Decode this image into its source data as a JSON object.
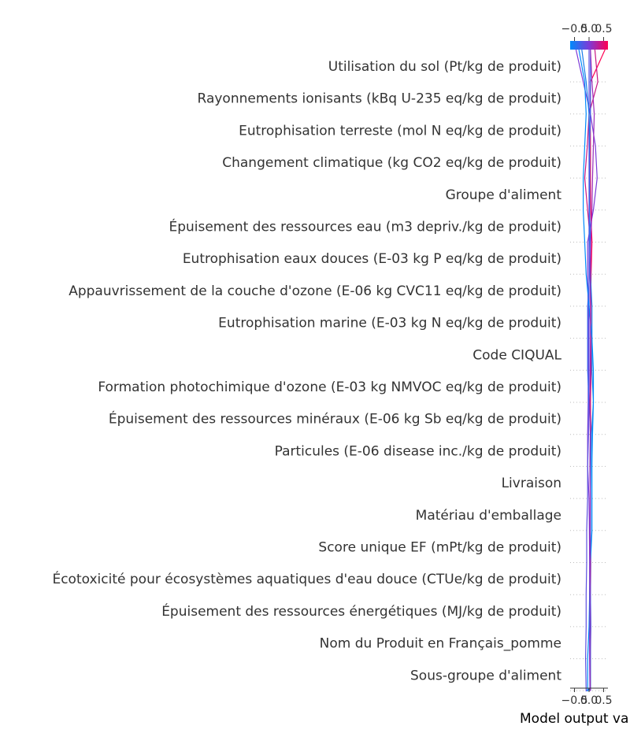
{
  "chart_data": {
    "type": "decision",
    "xlabel": "Model output va",
    "xticks": [
      -0.5,
      0.0,
      0.5
    ],
    "xtick_labels": [
      "−0.5",
      "0.0",
      "0.5"
    ],
    "xlim": [
      -0.65,
      0.65
    ],
    "colorbar": {
      "range": [
        -0.5,
        0.5
      ],
      "tick_labels": [
        "−0.5",
        "0.0",
        "0.5"
      ],
      "colors": [
        "#008afb",
        "#7c3bd8",
        "#ff0052"
      ]
    },
    "features": [
      "Utilisation du sol (Pt/kg de produit)",
      "Rayonnements ionisants (kBq U-235 eq/kg de produit)",
      "Eutrophisation terreste (mol N eq/kg de produit)",
      "Changement climatique (kg CO2 eq/kg de produit)",
      "Groupe d'aliment",
      "Épuisement des ressources eau (m3 depriv./kg de produit)",
      "Eutrophisation eaux douces (E-03 kg P eq/kg de produit)",
      "Appauvrissement de la couche d'ozone (E-06 kg CVC11 eq/kg de produit)",
      "Eutrophisation marine (E-03 kg N eq/kg de produit)",
      "Code CIQUAL",
      "Formation photochimique d'ozone (E-03 kg NMVOC eq/kg de produit)",
      "Épuisement des ressources minéraux (E-06 kg Sb eq/kg de produit)",
      "Particules (E-06 disease inc./kg de produit)",
      "Livraison",
      "Matériau d'emballage",
      "Score unique EF (mPt/kg de produit)",
      "Écotoxicité pour écosystèmes aquatiques d'eau douce (CTUe/kg de produit)",
      "Épuisement des ressources énergétiques (MJ/kg de produit)",
      "Nom du Produit en Français_pomme",
      "Sous-groupe d'aliment"
    ],
    "base_value": 0.05,
    "series": [
      {
        "color": "#ff0052",
        "values": [
          0.05,
          0.05,
          0.06,
          0.05,
          0.06,
          0.05,
          0.05,
          0.05,
          0.06,
          0.05,
          0.07,
          0.06,
          0.06,
          0.07,
          0.1,
          0.06,
          0.05,
          0.05,
          0.04,
          0.05,
          0.55
        ]
      },
      {
        "color": "#c81683",
        "values": [
          0.05,
          0.04,
          0.05,
          0.04,
          0.05,
          0.04,
          0.05,
          0.05,
          0.06,
          0.04,
          0.07,
          0.06,
          0.05,
          0.06,
          0.05,
          -0.05,
          -0.15,
          -0.06,
          0.0,
          0.3,
          0.2
        ]
      },
      {
        "color": "#7c3bd8",
        "values": [
          0.03,
          0.02,
          0.02,
          0.02,
          0.02,
          0.01,
          0.0,
          -0.05,
          -0.05,
          -0.03,
          -0.03,
          -0.03,
          -0.03,
          -0.05,
          -0.05,
          0.15,
          0.28,
          0.22,
          0.05,
          -0.2,
          -0.45
        ]
      },
      {
        "color": "#5d4fe0",
        "values": [
          -0.1,
          -0.12,
          -0.1,
          -0.1,
          -0.08,
          -0.08,
          -0.05,
          -0.05,
          -0.02,
          -0.02,
          0.0,
          0.0,
          0.0,
          0.0,
          0.0,
          0.0,
          0.0,
          0.0,
          0.0,
          0.0,
          0.0
        ]
      },
      {
        "color": "#1a7de8",
        "values": [
          0.05,
          0.05,
          0.04,
          0.04,
          0.05,
          0.05,
          0.05,
          0.06,
          0.08,
          0.15,
          0.1,
          0.1,
          0.1,
          0.05,
          0.03,
          0.02,
          0.02,
          0.02,
          0.0,
          -0.1,
          -0.25
        ]
      },
      {
        "color": "#008afb",
        "values": [
          -0.05,
          -0.05,
          0.0,
          0.02,
          0.05,
          0.1,
          0.1,
          0.1,
          0.12,
          0.15,
          0.15,
          0.1,
          0.0,
          -0.1,
          -0.15,
          -0.2,
          -0.2,
          -0.15,
          -0.1,
          -0.15,
          -0.35
        ]
      },
      {
        "color": "#3a68ef",
        "values": [
          0.03,
          0.04,
          0.06,
          0.05,
          0.04,
          0.04,
          0.05,
          0.03,
          0.05,
          0.0,
          -0.05,
          -0.05,
          -0.05,
          0.02,
          0.05,
          0.02,
          0.02,
          0.02,
          0.05,
          0.05,
          0.05
        ]
      },
      {
        "color": "#9a2ab9",
        "values": [
          0.04,
          0.03,
          0.03,
          0.03,
          0.04,
          0.03,
          0.04,
          0.03,
          0.04,
          0.02,
          0.04,
          0.05,
          0.05,
          0.04,
          0.06,
          0.1,
          0.12,
          0.15,
          0.18,
          0.1,
          0.05
        ]
      }
    ]
  }
}
